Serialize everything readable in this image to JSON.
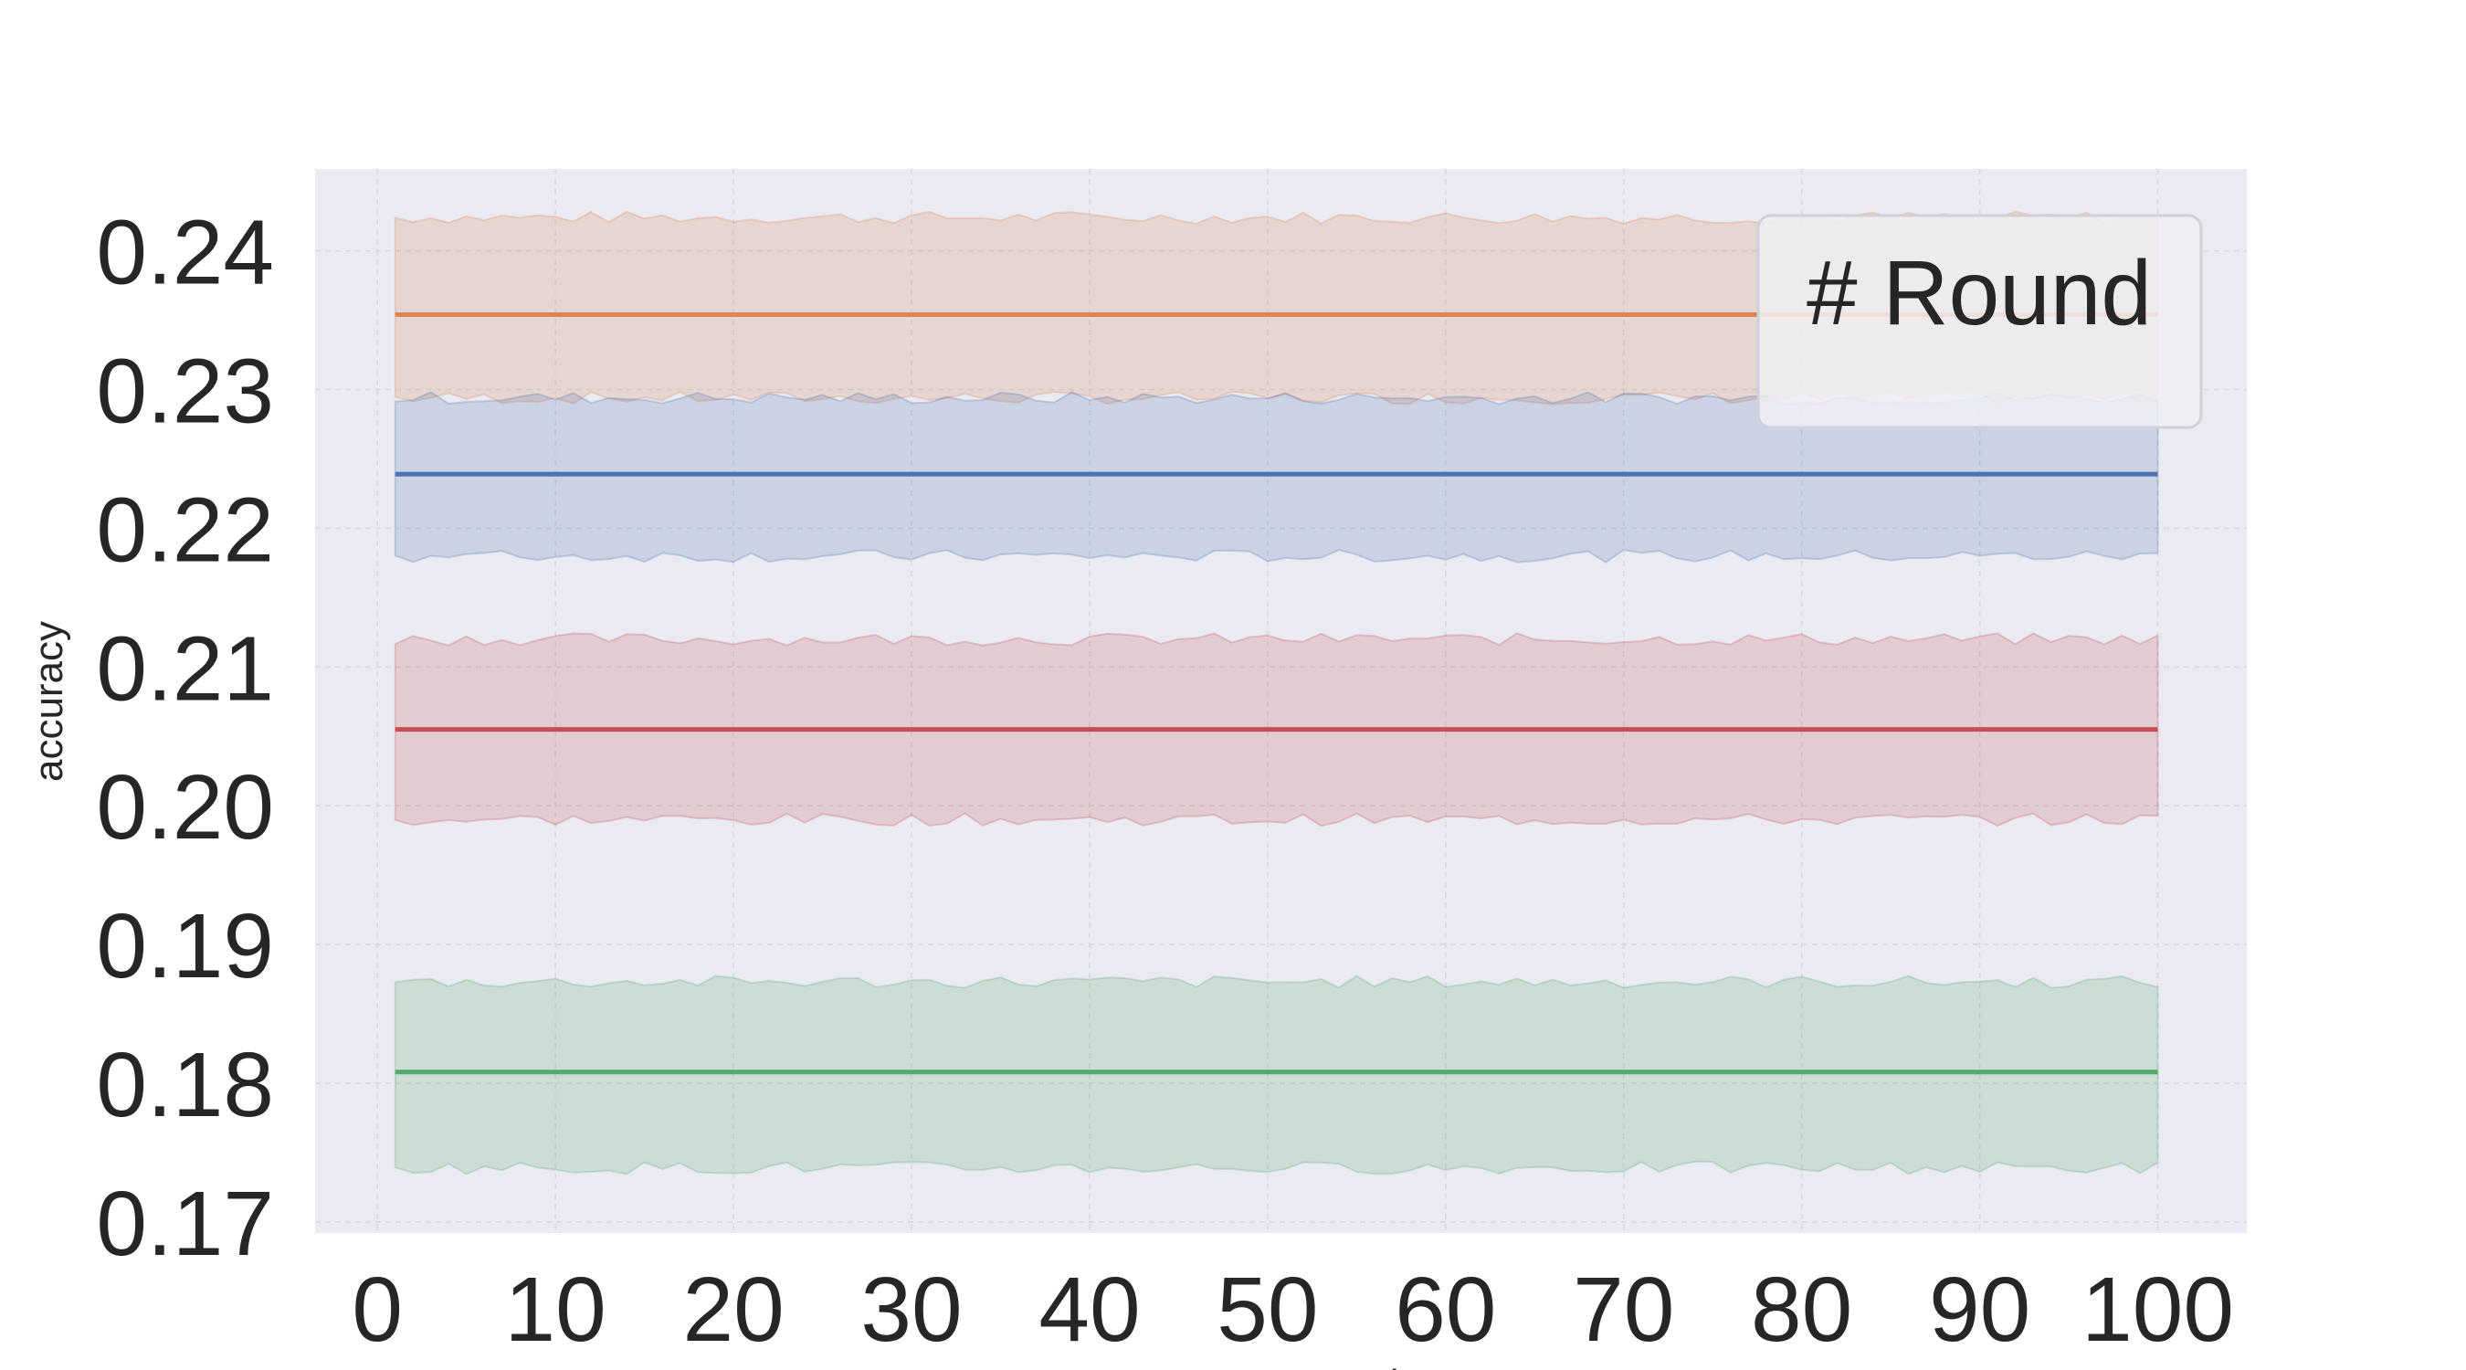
{
  "chart_data": {
    "type": "line",
    "title": "",
    "xlabel": "server_round",
    "ylabel": "accuracy",
    "xlim": [
      -3.5,
      105
    ],
    "ylim": [
      0.1692,
      0.2459
    ],
    "xticks": [
      0,
      10,
      20,
      30,
      40,
      50,
      60,
      70,
      80,
      90,
      100
    ],
    "yticks": [
      0.17,
      0.18,
      0.19,
      0.2,
      0.21,
      0.22,
      0.23,
      0.24
    ],
    "ytick_labels": [
      "0.17",
      "0.18",
      "0.19",
      "0.20",
      "0.21",
      "0.22",
      "0.23",
      "0.24"
    ],
    "grid": true,
    "legend": {
      "title": "# Round",
      "placement": "top-right",
      "entries": []
    },
    "x_range": [
      1,
      100
    ],
    "series": [
      {
        "color": "#dd8452",
        "mean": 0.2354,
        "band": [
          0.2294,
          0.2424
        ]
      },
      {
        "color": "#4c72b0",
        "mean": 0.2239,
        "band": [
          0.218,
          0.2294
        ]
      },
      {
        "color": "#c44e52",
        "mean": 0.2055,
        "band": [
          0.199,
          0.212
        ]
      },
      {
        "color": "#55a868",
        "mean": 0.1808,
        "band": [
          0.1739,
          0.1873
        ]
      }
    ],
    "colors": {
      "plot_background": "#eaeaf2",
      "grid": "#d8d8e0",
      "text": "#262626"
    }
  }
}
